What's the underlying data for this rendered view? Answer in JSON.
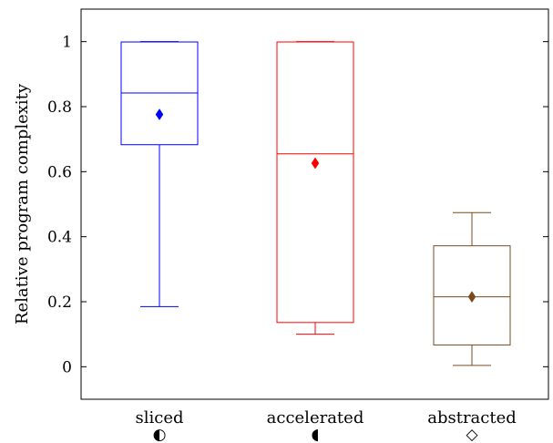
{
  "chart_data": {
    "type": "box",
    "ylabel": "Relative program complexity",
    "ylim": [
      -0.1,
      1.1
    ],
    "yticks": [
      0,
      0.2,
      0.4,
      0.6,
      0.8,
      1
    ],
    "ytick_labels": [
      "0",
      "0.2",
      "0.4",
      "0.6",
      "0.8",
      "1"
    ],
    "grid": false,
    "categories": [
      {
        "label": "sliced",
        "symbol": "◐",
        "color": "#0000ff",
        "whisker_low": 0.185,
        "q1": 0.683,
        "median": 0.842,
        "q3": 0.999,
        "whisker_high": 1.0,
        "mean": 0.776
      },
      {
        "label": "accelerated",
        "symbol": "◖",
        "color": "#ff0000",
        "whisker_low": 0.1,
        "q1": 0.136,
        "median": 0.655,
        "q3": 0.999,
        "whisker_high": 1.0,
        "mean": 0.626
      },
      {
        "label": "abstracted",
        "symbol": "◇",
        "color": "#7a4a1f",
        "whisker_low": 0.004,
        "q1": 0.067,
        "median": 0.215,
        "q3": 0.372,
        "whisker_high": 0.474,
        "mean": 0.215
      }
    ]
  }
}
